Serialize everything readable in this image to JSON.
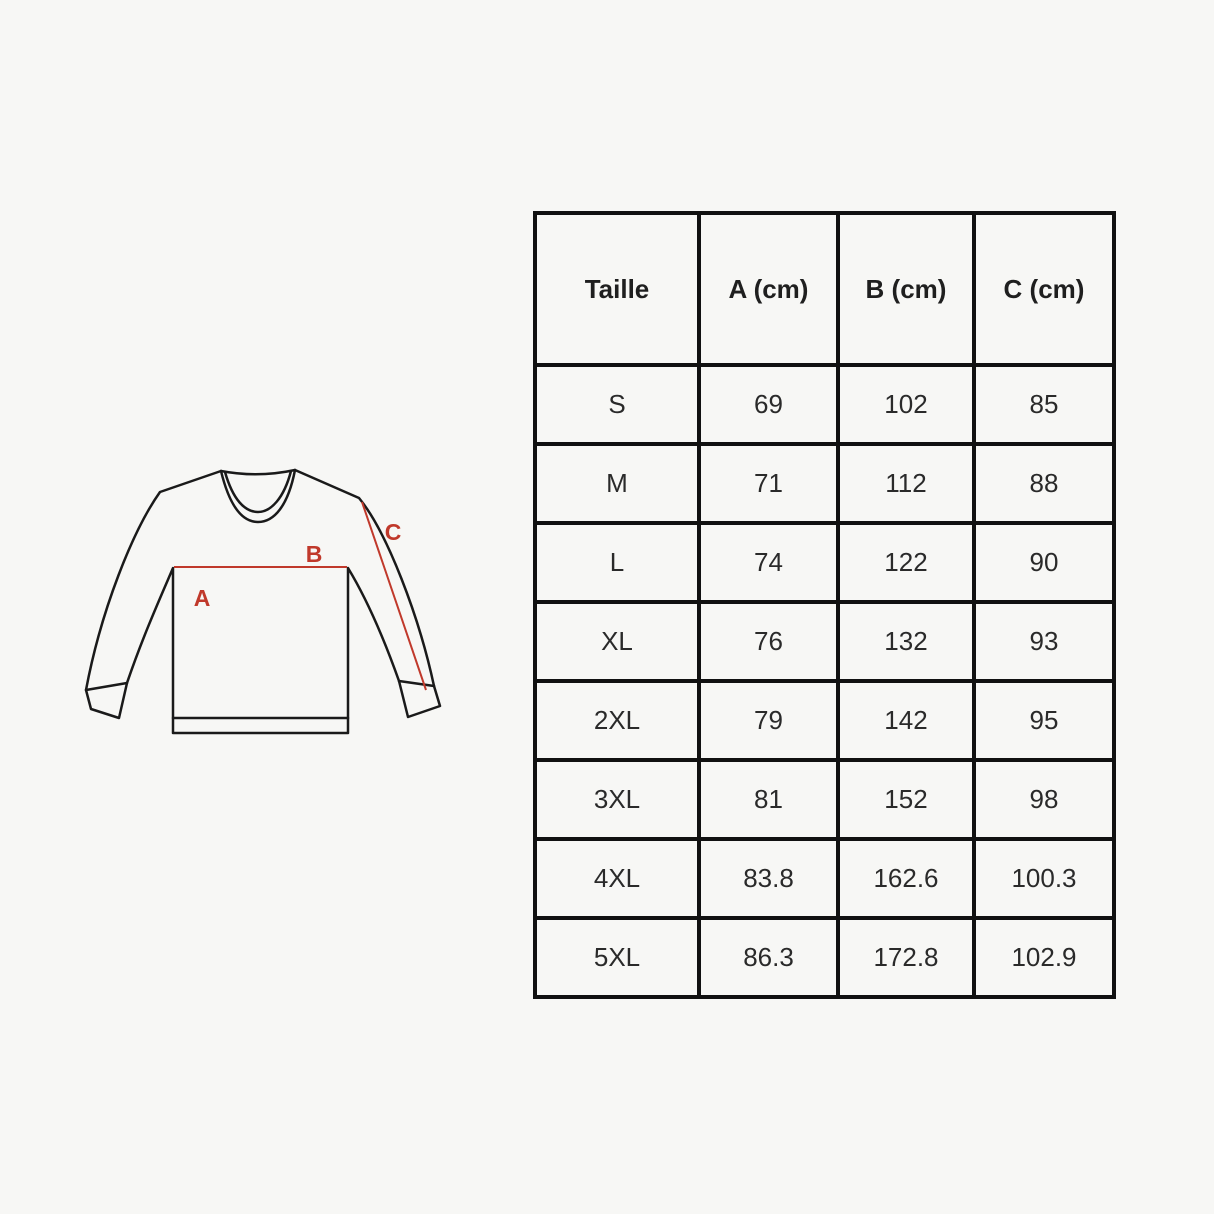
{
  "page": {
    "background_color": "#f7f7f5"
  },
  "diagram": {
    "type": "long-sleeve-sweatshirt-measurement-schematic",
    "outline_color": "#1a1a1a",
    "accent_color": "#c0392b",
    "label_a": "A",
    "label_b": "B",
    "label_c": "C"
  },
  "table": {
    "border_color": "#111111",
    "text_color": "#1f1f1f",
    "headers": [
      "Taille",
      "A (cm)",
      "B (cm)",
      "C (cm)"
    ],
    "rows": [
      [
        "S",
        "69",
        "102",
        "85"
      ],
      [
        "M",
        "71",
        "112",
        "88"
      ],
      [
        "L",
        "74",
        "122",
        "90"
      ],
      [
        "XL",
        "76",
        "132",
        "93"
      ],
      [
        "2XL",
        "79",
        "142",
        "95"
      ],
      [
        "3XL",
        "81",
        "152",
        "98"
      ],
      [
        "4XL",
        "83.8",
        "162.6",
        "100.3"
      ],
      [
        "5XL",
        "86.3",
        "172.8",
        "102.9"
      ]
    ]
  }
}
